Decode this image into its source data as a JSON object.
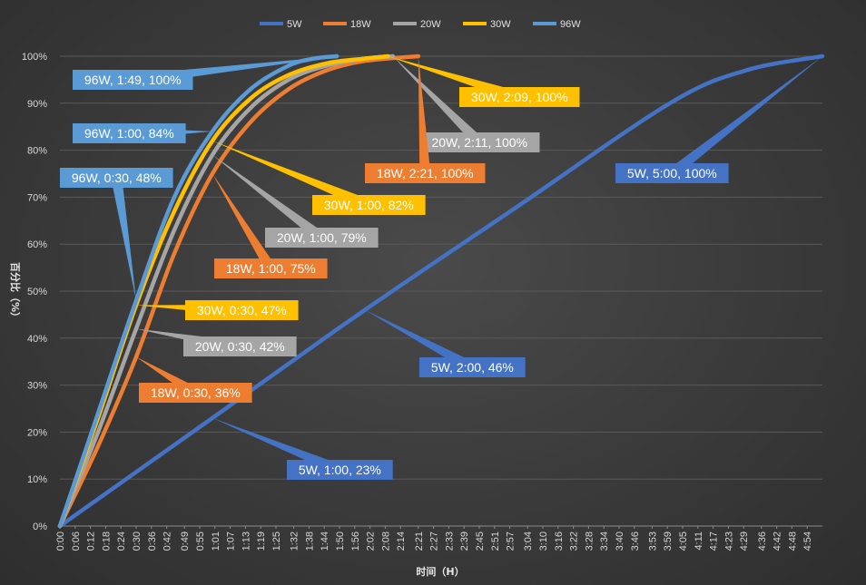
{
  "chart_data": {
    "type": "line",
    "title": "",
    "xlabel": "时间（H）",
    "ylabel": "百分比（%）",
    "ylim": [
      0,
      100
    ],
    "xlim_minutes": [
      0,
      300
    ],
    "y_ticks": [
      "0%",
      "10%",
      "20%",
      "30%",
      "40%",
      "50%",
      "60%",
      "70%",
      "80%",
      "90%",
      "100%"
    ],
    "x_ticks": [
      "0:00",
      "0:06",
      "0:12",
      "0:18",
      "0:24",
      "0:30",
      "0:36",
      "0:42",
      "0:49",
      "0:55",
      "1:01",
      "1:07",
      "1:13",
      "1:19",
      "1:25",
      "1:32",
      "1:38",
      "1:44",
      "1:50",
      "1:56",
      "2:02",
      "2:08",
      "2:14",
      "2:21",
      "2:27",
      "2:33",
      "2:39",
      "2:45",
      "2:51",
      "2:57",
      "3:04",
      "3:10",
      "3:16",
      "3:22",
      "3:28",
      "3:34",
      "3:40",
      "3:46",
      "3:53",
      "3:59",
      "4:05",
      "4:11",
      "4:17",
      "4:23",
      "4:29",
      "4:36",
      "4:42",
      "4:48",
      "4:54"
    ],
    "legend_position": "top-center",
    "grid": true,
    "series": [
      {
        "name": "5W",
        "color": "#4472c4",
        "x": [
          "0:00",
          "1:00",
          "2:00",
          "3:00",
          "4:00",
          "4:30",
          "5:00"
        ],
        "y": [
          0,
          23,
          46,
          68,
          90,
          97,
          100
        ]
      },
      {
        "name": "18W",
        "color": "#ed7d31",
        "x": [
          "0:00",
          "0:15",
          "0:30",
          "0:45",
          "1:00",
          "1:15",
          "1:30",
          "1:45",
          "2:00",
          "2:21"
        ],
        "y": [
          0,
          17,
          36,
          58,
          75,
          86,
          93,
          97,
          99,
          100
        ]
      },
      {
        "name": "20W",
        "color": "#a5a5a5",
        "x": [
          "0:00",
          "0:15",
          "0:30",
          "0:45",
          "1:00",
          "1:15",
          "1:30",
          "1:45",
          "2:00",
          "2:11"
        ],
        "y": [
          0,
          20,
          42,
          63,
          79,
          89,
          95,
          98,
          99.5,
          100
        ]
      },
      {
        "name": "30W",
        "color": "#ffc000",
        "x": [
          "0:00",
          "0:15",
          "0:30",
          "0:45",
          "1:00",
          "1:15",
          "1:30",
          "1:45",
          "2:00",
          "2:09"
        ],
        "y": [
          0,
          23,
          47,
          67,
          82,
          91,
          96,
          98.5,
          99.5,
          100
        ]
      },
      {
        "name": "96W",
        "color": "#5b9bd5",
        "x": [
          "0:00",
          "0:15",
          "0:30",
          "0:45",
          "1:00",
          "1:15",
          "1:30",
          "1:40",
          "1:49"
        ],
        "y": [
          0,
          24,
          48,
          70,
          84,
          93,
          98,
          99.5,
          100
        ]
      }
    ],
    "annotations": [
      {
        "text": "96W, 1:49, 100%",
        "series": "96W",
        "color": "#5b9bd5"
      },
      {
        "text": "96W, 1:00, 84%",
        "series": "96W",
        "color": "#5b9bd5"
      },
      {
        "text": "96W, 0:30, 48%",
        "series": "96W",
        "color": "#5b9bd5"
      },
      {
        "text": "30W, 2:09, 100%",
        "series": "30W",
        "color": "#ffc000"
      },
      {
        "text": "20W, 2:11, 100%",
        "series": "20W",
        "color": "#a5a5a5"
      },
      {
        "text": "18W, 2:21, 100%",
        "series": "18W",
        "color": "#ed7d31"
      },
      {
        "text": "30W, 1:00, 82%",
        "series": "30W",
        "color": "#ffc000"
      },
      {
        "text": "20W, 1:00, 79%",
        "series": "20W",
        "color": "#a5a5a5"
      },
      {
        "text": "18W, 1:00, 75%",
        "series": "18W",
        "color": "#ed7d31"
      },
      {
        "text": "30W, 0:30, 47%",
        "series": "30W",
        "color": "#ffc000"
      },
      {
        "text": "20W, 0:30, 42%",
        "series": "20W",
        "color": "#a5a5a5"
      },
      {
        "text": "18W, 0:30, 36%",
        "series": "18W",
        "color": "#ed7d31"
      },
      {
        "text": "5W, 5:00, 100%",
        "series": "5W",
        "color": "#4472c4"
      },
      {
        "text": "5W, 2:00, 46%",
        "series": "5W",
        "color": "#4472c4"
      },
      {
        "text": "5W, 1:00, 23%",
        "series": "5W",
        "color": "#4472c4"
      }
    ]
  }
}
